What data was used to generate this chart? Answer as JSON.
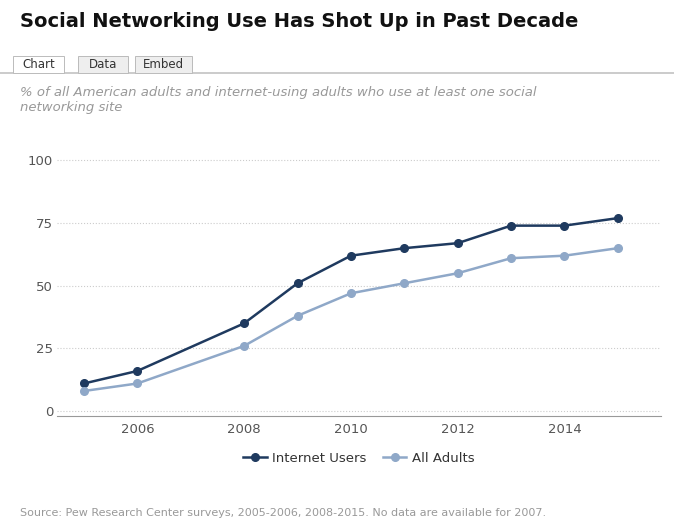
{
  "title": "Social Networking Use Has Shot Up in Past Decade",
  "subtitle": "% of all American adults and internet-using adults who use at least one social\nnetworking site",
  "source": "Source: Pew Research Center surveys, 2005-2006, 2008-2015. No data are available for 2007.",
  "years_internet": [
    2005,
    2006,
    2008,
    2009,
    2010,
    2011,
    2012,
    2013,
    2014,
    2015
  ],
  "internet_users": [
    11,
    16,
    35,
    51,
    62,
    65,
    67,
    74,
    74,
    77
  ],
  "years_adults": [
    2005,
    2006,
    2008,
    2009,
    2010,
    2011,
    2012,
    2013,
    2014,
    2015
  ],
  "all_adults": [
    8,
    11,
    26,
    38,
    47,
    51,
    55,
    61,
    62,
    65
  ],
  "internet_color": "#1f3a5f",
  "adults_color": "#8fa8c8",
  "background_color": "#ffffff",
  "grid_color": "#cccccc",
  "tab_labels": [
    "Chart",
    "Data",
    "Embed"
  ],
  "ylabel_ticks": [
    0,
    25,
    50,
    75,
    100
  ],
  "ylim": [
    -2,
    108
  ],
  "xlim": [
    2004.5,
    2015.8
  ],
  "title_fontsize": 14,
  "subtitle_fontsize": 9.5,
  "source_fontsize": 8,
  "tick_fontsize": 9.5,
  "legend_fontsize": 9.5
}
